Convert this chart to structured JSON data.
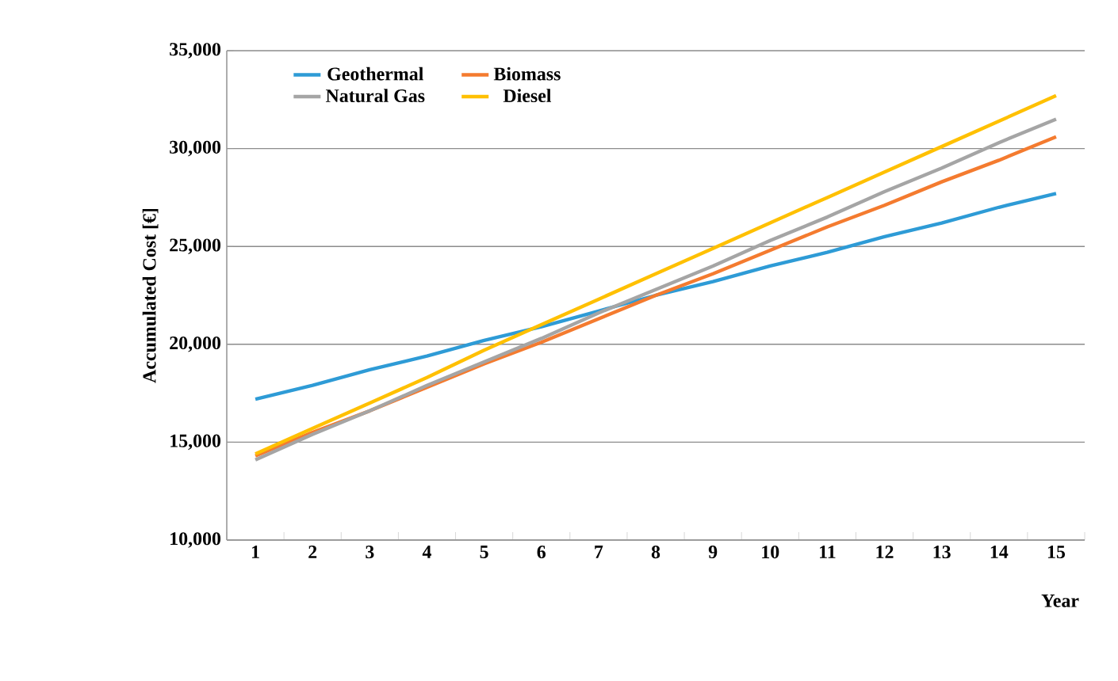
{
  "chart_data": {
    "type": "line",
    "xlabel": "Year",
    "ylabel": "Accumulated Cost [€]",
    "categories": [
      "1",
      "2",
      "3",
      "4",
      "5",
      "6",
      "7",
      "8",
      "9",
      "10",
      "11",
      "12",
      "13",
      "14",
      "15"
    ],
    "series": [
      {
        "name": "Geothermal",
        "color": "#2e9bd6",
        "values": [
          17200,
          17900,
          18700,
          19400,
          20200,
          20900,
          21700,
          22500,
          23200,
          24000,
          24700,
          25500,
          26200,
          27000,
          27700
        ]
      },
      {
        "name": "Biomass",
        "color": "#f47b2f",
        "values": [
          14300,
          15500,
          16600,
          17800,
          19000,
          20100,
          21300,
          22500,
          23600,
          24800,
          26000,
          27100,
          28300,
          29400,
          30600
        ]
      },
      {
        "name": "Natural Gas",
        "color": "#a5a5a5",
        "values": [
          14100,
          15400,
          16600,
          17900,
          19100,
          20300,
          21600,
          22800,
          24000,
          25300,
          26500,
          27800,
          29000,
          30300,
          31500
        ]
      },
      {
        "name": "Diesel",
        "color": "#ffc000",
        "values": [
          14400,
          15700,
          17000,
          18300,
          19700,
          21000,
          22300,
          23600,
          24900,
          26200,
          27500,
          28800,
          30100,
          31400,
          32700
        ]
      }
    ],
    "ylim": [
      10000,
      35000
    ],
    "yticks": [
      {
        "value": 10000,
        "label": "10,000"
      },
      {
        "value": 15000,
        "label": "15,000"
      },
      {
        "value": 20000,
        "label": "20,000"
      },
      {
        "value": 25000,
        "label": "25,000"
      },
      {
        "value": 30000,
        "label": "30,000"
      },
      {
        "value": 35000,
        "label": "35,000"
      }
    ],
    "grid": "y",
    "legend": "top left",
    "marker": "none",
    "line_style": "solid"
  }
}
